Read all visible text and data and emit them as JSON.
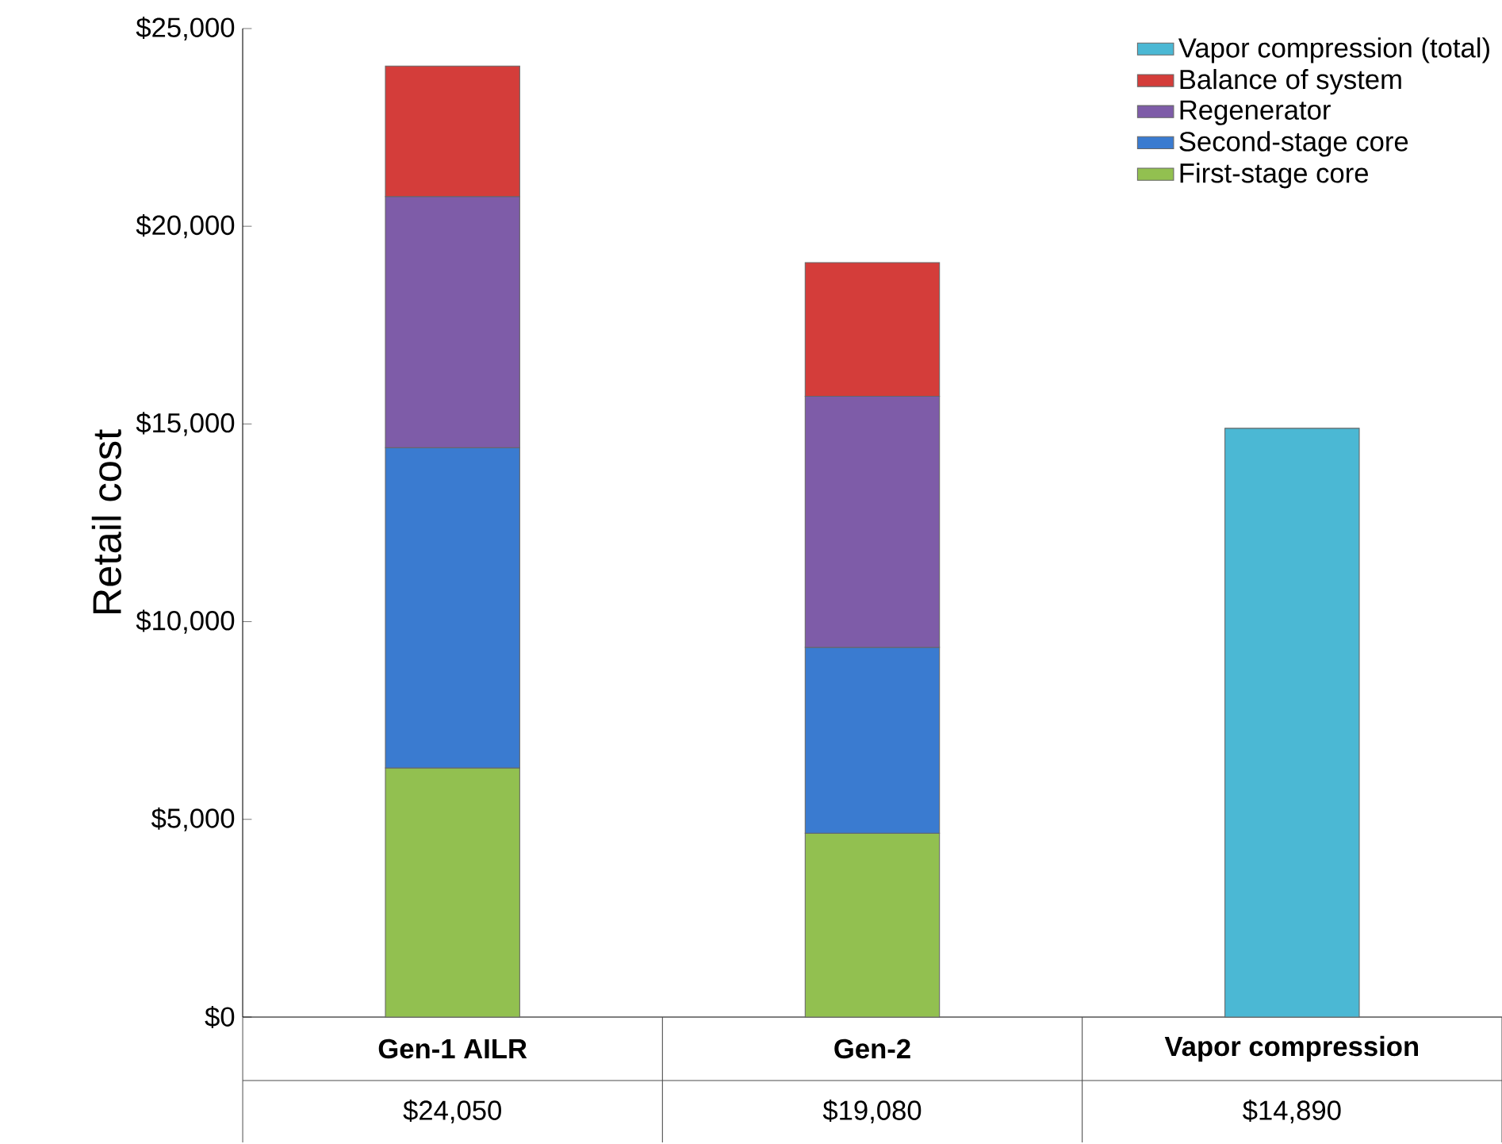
{
  "chart_data": {
    "type": "bar",
    "stacked": true,
    "ylabel": "Retail cost",
    "categories": [
      "Gen-1 AILR",
      "Gen-2",
      "Vapor compression"
    ],
    "series": [
      {
        "name": "First-stage core",
        "color": "#92c050",
        "values": [
          6300,
          4650,
          null
        ]
      },
      {
        "name": "Second-stage core",
        "color": "#3a7bd0",
        "values": [
          8100,
          4700,
          null
        ]
      },
      {
        "name": "Regenerator",
        "color": "#7e5ca8",
        "values": [
          6350,
          6350,
          null
        ]
      },
      {
        "name": "Balance of system",
        "color": "#d43d3a",
        "values": [
          3300,
          3380,
          null
        ]
      },
      {
        "name": "Vapor compression (total)",
        "color": "#4bb8d4",
        "values": [
          null,
          null,
          14890
        ]
      }
    ],
    "totals": [
      "$24,050",
      "$19,080",
      "$14,890"
    ],
    "ylim": [
      0,
      25000
    ],
    "yticks": [
      {
        "value": 0,
        "label": "$0"
      },
      {
        "value": 5000,
        "label": "$5,000"
      },
      {
        "value": 10000,
        "label": "$10,000"
      },
      {
        "value": 15000,
        "label": "$15,000"
      },
      {
        "value": 20000,
        "label": "$20,000"
      },
      {
        "value": 25000,
        "label": "$25,000"
      }
    ],
    "grid": false,
    "legend": "top right"
  }
}
